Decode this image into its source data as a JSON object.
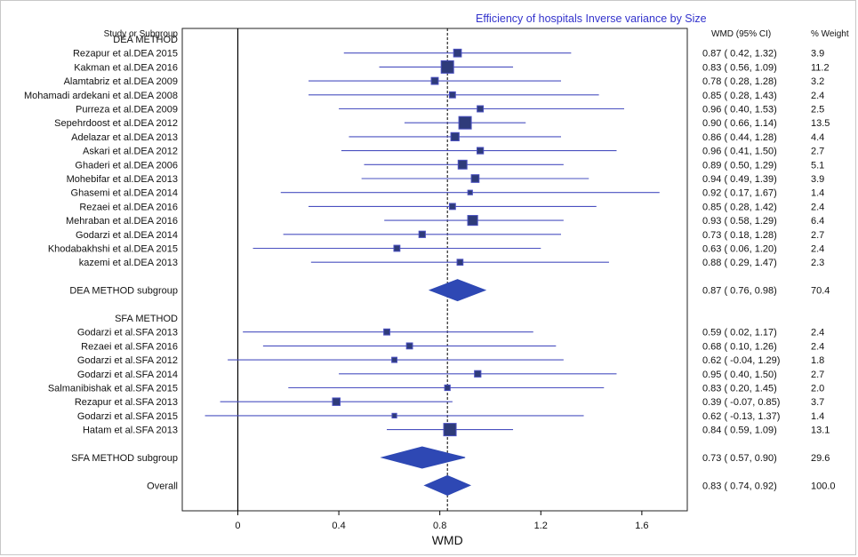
{
  "chart_data": {
    "type": "forest",
    "title": "Efficiency of hospitals Inverse variance by Size",
    "xlabel": "WMD",
    "xlim": [
      -0.22,
      1.78
    ],
    "xticks": [
      0,
      0.4,
      0.8,
      1.2,
      1.6
    ],
    "xtick_labels": [
      "0",
      "0.4",
      "0.8",
      "1.2",
      "1.6"
    ],
    "reference_line": 0,
    "overall_line": 0.83,
    "col_headers": {
      "study": "Study or Subgroup",
      "effect": "WMD (95% CI)",
      "weight": "% Weight"
    },
    "colors": {
      "ci_line": "#4a50c0",
      "box_fill": "#2e3b7a",
      "box_stroke": "#4a50c0",
      "diamond": "#2e48b4",
      "title": "#3333cc"
    },
    "rows": [
      {
        "kind": "group",
        "label": "DEA METHOD"
      },
      {
        "kind": "study",
        "label": "Rezapur et al.DEA 2015",
        "est": 0.87,
        "lo": 0.42,
        "hi": 1.32,
        "ci_text": "0.87  ( 0.42,  1.32)",
        "weight": "3.9"
      },
      {
        "kind": "study",
        "label": "Kakman et al.DEA 2016",
        "est": 0.83,
        "lo": 0.56,
        "hi": 1.09,
        "ci_text": "0.83  ( 0.56,  1.09)",
        "weight": "11.2"
      },
      {
        "kind": "study",
        "label": "Alamtabriz et al.DEA 2009",
        "est": 0.78,
        "lo": 0.28,
        "hi": 1.28,
        "ci_text": "0.78  ( 0.28,  1.28)",
        "weight": "3.2"
      },
      {
        "kind": "study",
        "label": "Mohamadi ardekani et al.DEA 2008",
        "est": 0.85,
        "lo": 0.28,
        "hi": 1.43,
        "ci_text": "0.85  ( 0.28,  1.43)",
        "weight": "2.4"
      },
      {
        "kind": "study",
        "label": "Purreza et al.DEA 2009",
        "est": 0.96,
        "lo": 0.4,
        "hi": 1.53,
        "ci_text": "0.96  ( 0.40,  1.53)",
        "weight": "2.5"
      },
      {
        "kind": "study",
        "label": "Sepehrdoost et al.DEA 2012",
        "est": 0.9,
        "lo": 0.66,
        "hi": 1.14,
        "ci_text": "0.90  ( 0.66,  1.14)",
        "weight": "13.5"
      },
      {
        "kind": "study",
        "label": "Adelazar et al.DEA 2013",
        "est": 0.86,
        "lo": 0.44,
        "hi": 1.28,
        "ci_text": "0.86  ( 0.44,  1.28)",
        "weight": "4.4"
      },
      {
        "kind": "study",
        "label": "Askari et al.DEA 2012",
        "est": 0.96,
        "lo": 0.41,
        "hi": 1.5,
        "ci_text": "0.96  ( 0.41,  1.50)",
        "weight": "2.7"
      },
      {
        "kind": "study",
        "label": "Ghaderi et al.DEA 2006",
        "est": 0.89,
        "lo": 0.5,
        "hi": 1.29,
        "ci_text": "0.89  ( 0.50,  1.29)",
        "weight": "5.1"
      },
      {
        "kind": "study",
        "label": "Mohebifar et al.DEA 2013",
        "est": 0.94,
        "lo": 0.49,
        "hi": 1.39,
        "ci_text": "0.94  ( 0.49,  1.39)",
        "weight": "3.9"
      },
      {
        "kind": "study",
        "label": "Ghasemi et al.DEA 2014",
        "est": 0.92,
        "lo": 0.17,
        "hi": 1.67,
        "ci_text": "0.92  ( 0.17,  1.67)",
        "weight": "1.4"
      },
      {
        "kind": "study",
        "label": "Rezaei et al.DEA 2016",
        "est": 0.85,
        "lo": 0.28,
        "hi": 1.42,
        "ci_text": "0.85  ( 0.28,  1.42)",
        "weight": "2.4"
      },
      {
        "kind": "study",
        "label": "Mehraban et al.DEA 2016",
        "est": 0.93,
        "lo": 0.58,
        "hi": 1.29,
        "ci_text": "0.93  ( 0.58,  1.29)",
        "weight": "6.4"
      },
      {
        "kind": "study",
        "label": "Godarzi et al.DEA 2014",
        "est": 0.73,
        "lo": 0.18,
        "hi": 1.28,
        "ci_text": "0.73  ( 0.18,  1.28)",
        "weight": "2.7"
      },
      {
        "kind": "study",
        "label": "Khodabakhshi et al.DEA 2015",
        "est": 0.63,
        "lo": 0.06,
        "hi": 1.2,
        "ci_text": "0.63  ( 0.06,  1.20)",
        "weight": "2.4"
      },
      {
        "kind": "study",
        "label": "kazemi et al.DEA 2013",
        "est": 0.88,
        "lo": 0.29,
        "hi": 1.47,
        "ci_text": "0.88  ( 0.29,  1.47)",
        "weight": "2.3"
      },
      {
        "kind": "blank"
      },
      {
        "kind": "subgroup",
        "label": "DEA METHOD subgroup",
        "est": 0.87,
        "lo": 0.76,
        "hi": 0.98,
        "ci_text": "0.87  ( 0.76,  0.98)",
        "weight": "70.4"
      },
      {
        "kind": "blank"
      },
      {
        "kind": "group",
        "label": "SFA METHOD"
      },
      {
        "kind": "study",
        "label": "Godarzi et al.SFA 2013",
        "est": 0.59,
        "lo": 0.02,
        "hi": 1.17,
        "ci_text": "0.59  ( 0.02,  1.17)",
        "weight": "2.4"
      },
      {
        "kind": "study",
        "label": "Rezaei et al.SFA 2016",
        "est": 0.68,
        "lo": 0.1,
        "hi": 1.26,
        "ci_text": "0.68  ( 0.10,  1.26)",
        "weight": "2.4"
      },
      {
        "kind": "study",
        "label": "Godarzi et al.SFA 2012",
        "est": 0.62,
        "lo": -0.04,
        "hi": 1.29,
        "ci_text": "0.62  ( -0.04,  1.29)",
        "weight": "1.8"
      },
      {
        "kind": "study",
        "label": "Godarzi et al.SFA 2014",
        "est": 0.95,
        "lo": 0.4,
        "hi": 1.5,
        "ci_text": "0.95  ( 0.40,  1.50)",
        "weight": "2.7"
      },
      {
        "kind": "study",
        "label": "Salmanibishak et al.SFA 2015",
        "est": 0.83,
        "lo": 0.2,
        "hi": 1.45,
        "ci_text": "0.83  ( 0.20,  1.45)",
        "weight": "2.0"
      },
      {
        "kind": "study",
        "label": "Rezapur et al.SFA 2013",
        "est": 0.39,
        "lo": -0.07,
        "hi": 0.85,
        "ci_text": "0.39  ( -0.07,  0.85)",
        "weight": "3.7"
      },
      {
        "kind": "study",
        "label": "Godarzi et al.SFA 2015",
        "est": 0.62,
        "lo": -0.13,
        "hi": 1.37,
        "ci_text": "0.62  ( -0.13,  1.37)",
        "weight": "1.4"
      },
      {
        "kind": "study",
        "label": "Hatam et al.SFA 2013",
        "est": 0.84,
        "lo": 0.59,
        "hi": 1.09,
        "ci_text": "0.84  ( 0.59,  1.09)",
        "weight": "13.1"
      },
      {
        "kind": "blank"
      },
      {
        "kind": "subgroup",
        "label": "SFA METHOD subgroup",
        "est": 0.73,
        "lo": 0.57,
        "hi": 0.9,
        "ci_text": "0.73  ( 0.57,  0.90)",
        "weight": "29.6"
      },
      {
        "kind": "blank"
      },
      {
        "kind": "overall",
        "label": "Overall",
        "est": 0.83,
        "lo": 0.74,
        "hi": 0.92,
        "ci_text": "0.83  ( 0.74,  0.92)",
        "weight": "100.0"
      }
    ]
  }
}
